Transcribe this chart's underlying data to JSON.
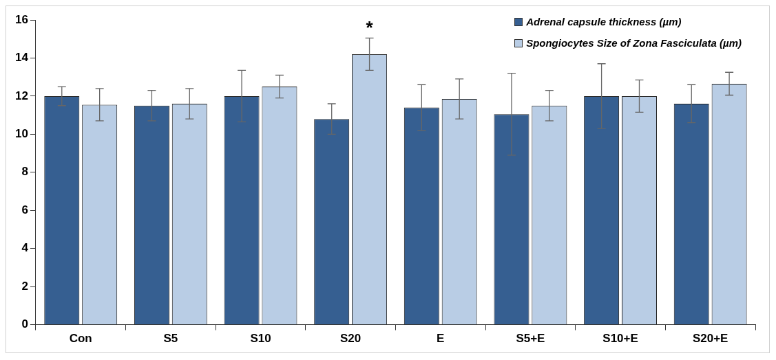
{
  "chart_data": {
    "type": "bar",
    "categories": [
      "Con",
      "S5",
      "S10",
      "S20",
      "E",
      "S5+E",
      "S10+E",
      "S20+E"
    ],
    "series": [
      {
        "name": "Adrenal capsule thickness (µm)",
        "color": "#365f91",
        "values": [
          12,
          11.5,
          12,
          10.8,
          11.4,
          11.05,
          12,
          11.6
        ],
        "errors": [
          0.5,
          0.8,
          1.35,
          0.8,
          1.2,
          2.15,
          1.7,
          1
        ]
      },
      {
        "name": "Spongiocytes Size of Zona Fasciculata (µm)",
        "color": "#b9cde5",
        "values": [
          11.55,
          11.6,
          12.5,
          14.2,
          11.85,
          11.5,
          12,
          12.65
        ],
        "errors": [
          0.85,
          0.8,
          0.6,
          0.85,
          1.05,
          0.8,
          0.85,
          0.6
        ]
      }
    ],
    "ylim": [
      0,
      16
    ],
    "yticks": [
      0,
      2,
      4,
      6,
      8,
      10,
      12,
      14,
      16
    ],
    "annotations": [
      "*"
    ],
    "legend": "top right"
  }
}
